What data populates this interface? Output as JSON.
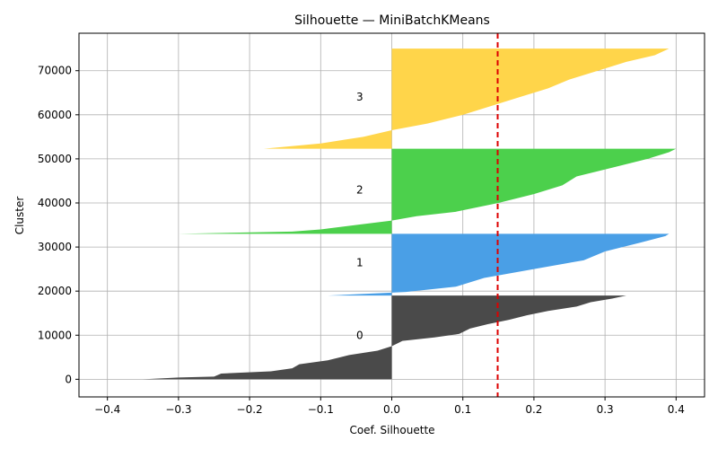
{
  "chart_data": {
    "type": "area",
    "title": "Silhouette — MiniBatchKMeans",
    "xlabel": "Coef. Silhouette",
    "ylabel": "Cluster",
    "xlim": [
      -0.44,
      0.44
    ],
    "ylim": [
      -4000,
      78500
    ],
    "xticks": [
      -0.4,
      -0.3,
      -0.2,
      -0.1,
      0.0,
      0.1,
      0.2,
      0.3,
      0.4
    ],
    "xtick_labels": [
      "−0.4",
      "−0.3",
      "−0.2",
      "−0.1",
      "0.0",
      "0.1",
      "0.2",
      "0.3",
      "0.4"
    ],
    "yticks": [
      0,
      10000,
      20000,
      30000,
      40000,
      50000,
      60000,
      70000
    ],
    "ytick_labels": [
      "0",
      "10000",
      "20000",
      "30000",
      "40000",
      "50000",
      "60000",
      "70000"
    ],
    "grid": true,
    "reference_line": {
      "x": 0.149,
      "color": "#dd0000",
      "style": "dashed"
    },
    "clusters": [
      {
        "label": "0",
        "color": "#4a4a4a",
        "label_x": -0.045,
        "label_y": 10000,
        "points": [
          [
            0,
            -0.35
          ],
          [
            400,
            -0.3
          ],
          [
            600,
            -0.25
          ],
          [
            1300,
            -0.24
          ],
          [
            1800,
            -0.17
          ],
          [
            2500,
            -0.14
          ],
          [
            3400,
            -0.13
          ],
          [
            4300,
            -0.09
          ],
          [
            5500,
            -0.06
          ],
          [
            6500,
            -0.02
          ],
          [
            7500,
            0.0
          ],
          [
            8700,
            0.015
          ],
          [
            9500,
            0.06
          ],
          [
            10300,
            0.095
          ],
          [
            11500,
            0.11
          ],
          [
            12500,
            0.135
          ],
          [
            13500,
            0.165
          ],
          [
            14500,
            0.19
          ],
          [
            15500,
            0.22
          ],
          [
            16500,
            0.26
          ],
          [
            17500,
            0.28
          ],
          [
            18300,
            0.31
          ],
          [
            19000,
            0.33
          ]
        ]
      },
      {
        "label": "1",
        "color": "#4a9fe6",
        "label_x": -0.045,
        "label_y": 26500,
        "points": [
          [
            19000,
            -0.09
          ],
          [
            19800,
            0.02
          ],
          [
            21000,
            0.09
          ],
          [
            23000,
            0.13
          ],
          [
            25000,
            0.2
          ],
          [
            27000,
            0.27
          ],
          [
            29000,
            0.3
          ],
          [
            31000,
            0.35
          ],
          [
            32500,
            0.385
          ],
          [
            33000,
            0.39
          ]
        ]
      },
      {
        "label": "2",
        "color": "#4cd04c",
        "label_x": -0.045,
        "label_y": 43000,
        "points": [
          [
            33000,
            -0.3
          ],
          [
            33500,
            -0.14
          ],
          [
            34000,
            -0.1
          ],
          [
            35000,
            -0.05
          ],
          [
            36000,
            0.0
          ],
          [
            37000,
            0.035
          ],
          [
            38000,
            0.09
          ],
          [
            40000,
            0.15
          ],
          [
            42000,
            0.2
          ],
          [
            44000,
            0.24
          ],
          [
            46000,
            0.26
          ],
          [
            48000,
            0.31
          ],
          [
            50000,
            0.36
          ],
          [
            51500,
            0.39
          ],
          [
            52300,
            0.4
          ]
        ]
      },
      {
        "label": "3",
        "color": "#ffd54a",
        "label_x": -0.045,
        "label_y": 64000,
        "points": [
          [
            52300,
            -0.18
          ],
          [
            53500,
            -0.1
          ],
          [
            55000,
            -0.04
          ],
          [
            56500,
            0.0
          ],
          [
            58000,
            0.05
          ],
          [
            60000,
            0.1
          ],
          [
            62000,
            0.14
          ],
          [
            64000,
            0.18
          ],
          [
            66000,
            0.22
          ],
          [
            68000,
            0.25
          ],
          [
            70000,
            0.29
          ],
          [
            72000,
            0.33
          ],
          [
            73500,
            0.37
          ],
          [
            75000,
            0.39
          ]
        ]
      }
    ]
  }
}
